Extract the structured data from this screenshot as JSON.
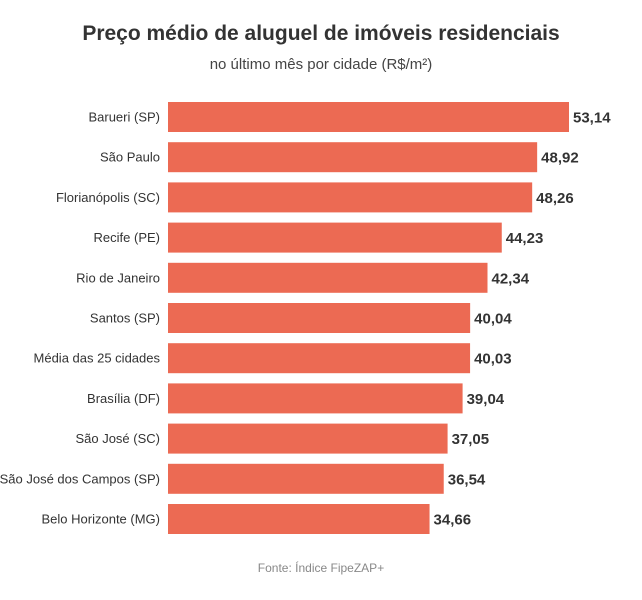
{
  "chart_data": {
    "type": "bar",
    "orientation": "horizontal",
    "title": "Preço médio de aluguel de imóveis residenciais",
    "subtitle": "no último mês por cidade (R$/m²)",
    "source": "Fonte: Índice FipeZAP+",
    "categories": [
      "Barueri (SP)",
      "São Paulo",
      "Florianópolis (SC)",
      "Recife (PE)",
      "Rio de Janeiro",
      "Santos (SP)",
      "Média das 25 cidades",
      "Brasília (DF)",
      "São José (SC)",
      "São José dos Campos (SP)",
      "Belo Horizonte (MG)"
    ],
    "values": [
      53.14,
      48.92,
      48.26,
      44.23,
      42.34,
      40.04,
      40.03,
      39.04,
      37.05,
      36.54,
      34.66
    ],
    "value_labels": [
      "53,14",
      "48,92",
      "48,26",
      "44,23",
      "42,34",
      "40,04",
      "40,03",
      "39,04",
      "37,05",
      "36,54",
      "34,66"
    ],
    "xlim": [
      0,
      53.14
    ],
    "grid": false,
    "bar_color": "#EC6A53"
  }
}
